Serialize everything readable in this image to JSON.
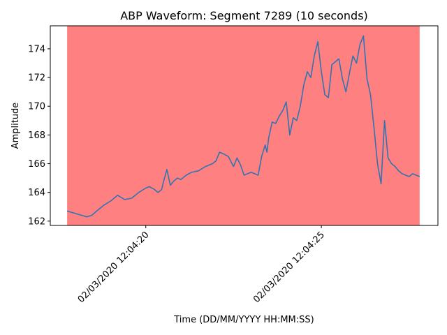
{
  "chart_data": {
    "type": "line",
    "title": "ABP Waveform: Segment 7289 (10 seconds)",
    "xlabel": "Time (DD/MM/YYYY HH:MM:SS)",
    "ylabel": "Amplitude",
    "xlim": [
      "02/03/2020 12:04:17.280",
      "02/03/2020 12:04:28.320"
    ],
    "ylim": [
      161.7,
      175.6
    ],
    "grid": false,
    "x_ticks": [
      "02/03/2020 12:04:20",
      "02/03/2020 12:04:25"
    ],
    "y_ticks": [
      162,
      164,
      166,
      168,
      170,
      172,
      174
    ],
    "x_tick_labels": [
      "02/03/2020 12:04:20",
      "02/03/2020 12:04:25"
    ],
    "y_tick_labels": [
      "162",
      "164",
      "166",
      "168",
      "170",
      "172",
      "174"
    ],
    "shaded_region": {
      "x_start": "02/03/2020 12:04:17.76",
      "x_end": "02/03/2020 12:04:27.80",
      "color": "#ff8080"
    },
    "series": [
      {
        "color": "#3274b1",
        "x": [
          "02/03/2020 12:04:17.76",
          "02/03/2020 12:04:17.90",
          "02/03/2020 12:04:18.04",
          "02/03/2020 12:04:18.18",
          "02/03/2020 12:04:18.32",
          "02/03/2020 12:04:18.46",
          "02/03/2020 12:04:18.60",
          "02/03/2020 12:04:18.80",
          "02/03/2020 12:04:19.00",
          "02/03/2020 12:04:19.20",
          "02/03/2020 12:04:19.40",
          "02/03/2020 12:04:19.60",
          "02/03/2020 12:04:19.80",
          "02/03/2020 12:04:20.00",
          "02/03/2020 12:04:20.10",
          "02/03/2020 12:04:20.25",
          "02/03/2020 12:04:20.35",
          "02/03/2020 12:04:20.45",
          "02/03/2020 12:04:20.50",
          "02/03/2020 12:04:20.60",
          "02/03/2020 12:04:20.70",
          "02/03/2020 12:04:20.80",
          "02/03/2020 12:04:20.90",
          "02/03/2020 12:04:21.00",
          "02/03/2020 12:04:21.15",
          "02/03/2020 12:04:21.30",
          "02/03/2020 12:04:21.50",
          "02/03/2020 12:04:21.70",
          "02/03/2020 12:04:21.90",
          "02/03/2020 12:04:22.00",
          "02/03/2020 12:04:22.10",
          "02/03/2020 12:04:22.20",
          "02/03/2020 12:04:22.35",
          "02/03/2020 12:04:22.50",
          "02/03/2020 12:04:22.60",
          "02/03/2020 12:04:22.70",
          "02/03/2020 12:04:22.80",
          "02/03/2020 12:04:22.90",
          "02/03/2020 12:04:23.00",
          "02/03/2020 12:04:23.10",
          "02/03/2020 12:04:23.20",
          "02/03/2020 12:04:23.30",
          "02/03/2020 12:04:23.40",
          "02/03/2020 12:04:23.45",
          "02/03/2020 12:04:23.50",
          "02/03/2020 12:04:23.60",
          "02/03/2020 12:04:23.70",
          "02/03/2020 12:04:23.80",
          "02/03/2020 12:04:23.90",
          "02/03/2020 12:04:24.00",
          "02/03/2020 12:04:24.10",
          "02/03/2020 12:04:24.20",
          "02/03/2020 12:04:24.30",
          "02/03/2020 12:04:24.40",
          "02/03/2020 12:04:24.50",
          "02/03/2020 12:04:24.60",
          "02/03/2020 12:04:24.70",
          "02/03/2020 12:04:24.80",
          "02/03/2020 12:04:24.90",
          "02/03/2020 12:04:25.00",
          "02/03/2020 12:04:25.10",
          "02/03/2020 12:04:25.20",
          "02/03/2020 12:04:25.30",
          "02/03/2020 12:04:25.40",
          "02/03/2020 12:04:25.50",
          "02/03/2020 12:04:25.60",
          "02/03/2020 12:04:25.70",
          "02/03/2020 12:04:25.80",
          "02/03/2020 12:04:25.90",
          "02/03/2020 12:04:26.00",
          "02/03/2020 12:04:26.10",
          "02/03/2020 12:04:26.20",
          "02/03/2020 12:04:26.30",
          "02/03/2020 12:04:26.40",
          "02/03/2020 12:04:26.50",
          "02/03/2020 12:04:26.60",
          "02/03/2020 12:04:26.70",
          "02/03/2020 12:04:26.80",
          "02/03/2020 12:04:26.90",
          "02/03/2020 12:04:27.00",
          "02/03/2020 12:04:27.10",
          "02/03/2020 12:04:27.20",
          "02/03/2020 12:04:27.30",
          "02/03/2020 12:04:27.40",
          "02/03/2020 12:04:27.50",
          "02/03/2020 12:04:27.60",
          "02/03/2020 12:04:27.70",
          "02/03/2020 12:04:27.80"
        ],
        "y": [
          162.7,
          162.6,
          162.5,
          162.4,
          162.3,
          162.4,
          162.7,
          163.1,
          163.4,
          163.8,
          163.5,
          163.6,
          164.0,
          164.3,
          164.4,
          164.2,
          164.0,
          164.2,
          164.7,
          165.6,
          164.5,
          164.8,
          165.0,
          164.9,
          165.2,
          165.4,
          165.5,
          165.8,
          166.0,
          166.2,
          166.8,
          166.7,
          166.5,
          165.8,
          166.4,
          165.9,
          165.2,
          165.3,
          165.4,
          165.3,
          165.2,
          166.5,
          167.3,
          166.8,
          167.8,
          168.9,
          168.8,
          169.3,
          169.7,
          170.3,
          168.0,
          169.2,
          169.0,
          170.0,
          171.5,
          172.4,
          172.0,
          173.5,
          174.5,
          172.4,
          170.8,
          170.6,
          172.9,
          173.1,
          173.3,
          171.9,
          171.0,
          172.3,
          173.5,
          173.0,
          174.3,
          174.9,
          171.9,
          170.8,
          168.5,
          166.0,
          164.6,
          169.0,
          166.4,
          166.0,
          165.8,
          165.5,
          165.3,
          165.2,
          165.1,
          165.3,
          165.2,
          165.1
        ]
      }
    ]
  }
}
